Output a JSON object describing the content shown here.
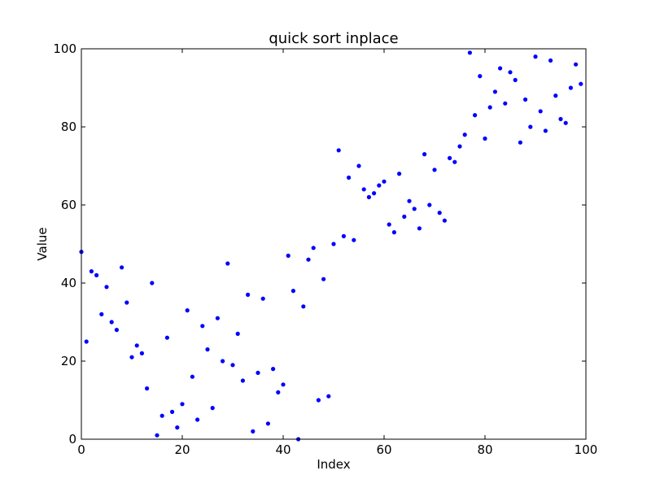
{
  "chart_data": {
    "type": "scatter",
    "title": "quick sort inplace",
    "xlabel": "Index",
    "ylabel": "Value",
    "xlim": [
      0,
      100
    ],
    "ylim": [
      0,
      100
    ],
    "xticks": [
      "0",
      "20",
      "40",
      "60",
      "80",
      "100"
    ],
    "yticks": [
      "0",
      "20",
      "40",
      "60",
      "80",
      "100"
    ],
    "grid": false,
    "marker_color": "#0000ff",
    "series": [
      {
        "x": [
          0,
          1,
          2,
          3,
          4,
          5,
          6,
          7,
          8,
          9,
          10,
          11,
          12,
          13,
          14,
          15,
          16,
          17,
          18,
          19,
          20,
          21,
          22,
          23,
          24,
          25,
          26,
          27,
          28,
          29,
          30,
          31,
          32,
          33,
          34,
          35,
          36,
          37,
          38,
          39,
          40,
          41,
          42,
          43,
          44,
          45,
          46,
          47,
          48,
          49,
          50,
          51,
          52,
          53,
          54,
          55,
          56,
          57,
          58,
          59,
          60,
          61,
          62,
          63,
          64,
          65,
          66,
          67,
          68,
          69,
          70,
          71,
          72,
          73,
          74,
          75,
          76,
          77,
          78,
          79,
          80,
          81,
          82,
          83,
          84,
          85,
          86,
          87,
          88,
          89,
          90,
          91,
          92,
          93,
          94,
          95,
          96,
          97,
          98,
          99
        ],
        "y": [
          48,
          25,
          43,
          42,
          32,
          39,
          30,
          28,
          44,
          35,
          21,
          24,
          22,
          13,
          40,
          1,
          6,
          26,
          7,
          3,
          9,
          33,
          16,
          5,
          29,
          23,
          8,
          31,
          20,
          45,
          19,
          27,
          15,
          37,
          2,
          17,
          36,
          4,
          18,
          12,
          14,
          47,
          38,
          0,
          34,
          46,
          49,
          10,
          41,
          11,
          50,
          74,
          52,
          67,
          51,
          70,
          64,
          62,
          63,
          65,
          66,
          55,
          53,
          68,
          57,
          61,
          59,
          54,
          73,
          60,
          69,
          58,
          56,
          72,
          71,
          75,
          78,
          99,
          83,
          93,
          77,
          85,
          89,
          95,
          86,
          94,
          92,
          76,
          87,
          80,
          98,
          84,
          79,
          97,
          88,
          82,
          81,
          90,
          96,
          91
        ]
      }
    ]
  }
}
